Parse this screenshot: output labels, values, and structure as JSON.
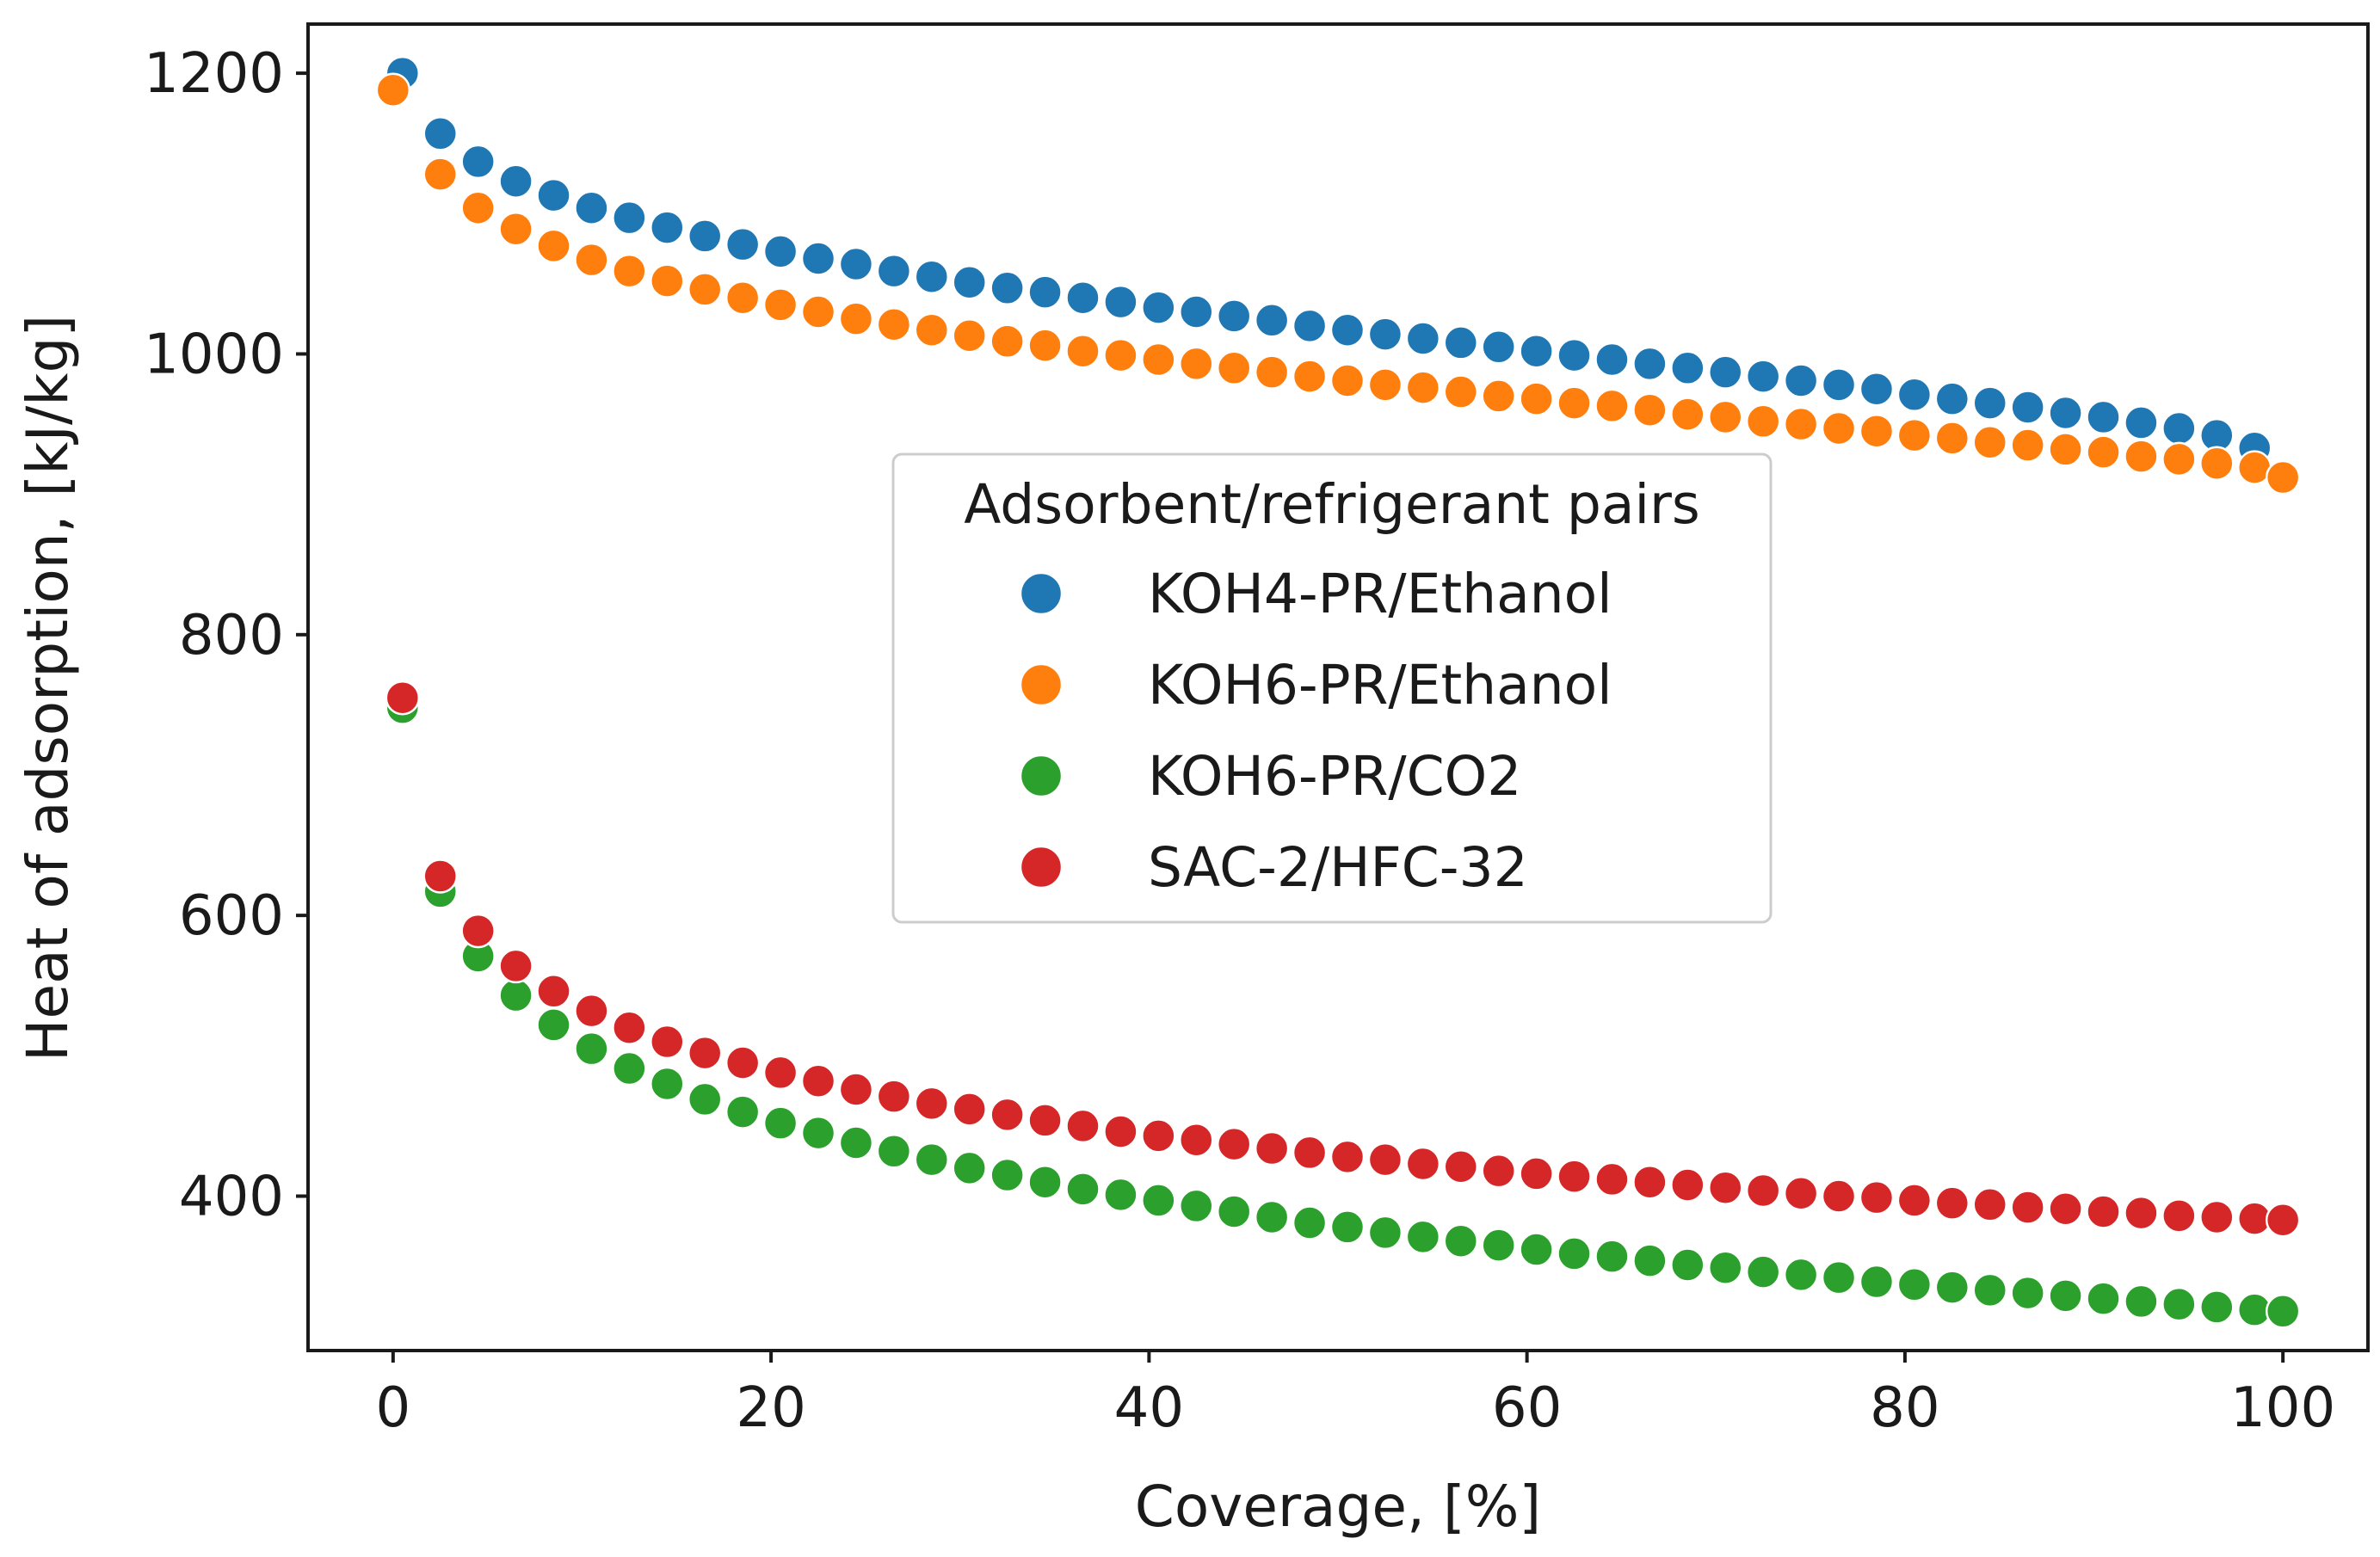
{
  "chart_data": {
    "type": "scatter",
    "title": "",
    "xlabel": "Coverage, [%]",
    "ylabel": "Heat of adsorption, [kJ/kg]",
    "xlim": [
      -4.5,
      104.5
    ],
    "ylim": [
      290,
      1235
    ],
    "xticks": [
      0,
      20,
      40,
      60,
      80,
      100
    ],
    "yticks": [
      400,
      600,
      800,
      1000,
      1200
    ],
    "xtick_labels": [
      "0",
      "20",
      "40",
      "60",
      "80",
      "100"
    ],
    "ytick_labels": [
      "400",
      "600",
      "800",
      "1000",
      "1200"
    ],
    "grid": false,
    "legend": {
      "title": "Adsorbent/refrigerant pairs",
      "location": "center"
    },
    "x": [
      0.5,
      2.5,
      4.5,
      6.5,
      8.5,
      10.5,
      12.5,
      14.5,
      16.5,
      18.5,
      20.5,
      22.5,
      24.5,
      26.5,
      28.5,
      30.5,
      32.5,
      34.5,
      36.5,
      38.5,
      40.5,
      42.5,
      44.5,
      46.5,
      48.5,
      50.5,
      52.5,
      54.5,
      56.5,
      58.5,
      60.5,
      62.5,
      64.5,
      66.5,
      68.5,
      70.5,
      72.5,
      74.5,
      76.5,
      78.5,
      80.5,
      82.5,
      84.5,
      86.5,
      88.5,
      90.5,
      92.5,
      94.5,
      96.5,
      98.5
    ],
    "series": [
      {
        "name": "KOH4-PR/Ethanol",
        "color": "#1f77b4",
        "x": [
          0.5,
          2.5,
          4.5,
          6.5,
          8.5,
          10.5,
          12.5,
          14.5,
          16.5,
          18.5,
          20.5,
          22.5,
          24.5,
          26.5,
          28.5,
          30.5,
          32.5,
          34.5,
          36.5,
          38.5,
          40.5,
          42.5,
          44.5,
          46.5,
          48.5,
          50.5,
          52.5,
          54.5,
          56.5,
          58.5,
          60.5,
          62.5,
          64.5,
          66.5,
          68.5,
          70.5,
          72.5,
          74.5,
          76.5,
          78.5,
          80.5,
          82.5,
          84.5,
          86.5,
          88.5,
          90.5,
          92.5,
          94.5,
          96.5,
          98.5
        ],
        "values": [
          1200,
          1157,
          1137,
          1123,
          1113,
          1104,
          1097,
          1090,
          1084,
          1078,
          1073,
          1068,
          1064,
          1059,
          1055,
          1051,
          1047,
          1044,
          1040,
          1037,
          1033,
          1030,
          1027,
          1024,
          1020,
          1017,
          1014,
          1011,
          1008,
          1005,
          1002,
          999,
          996,
          993,
          990,
          987,
          984,
          981,
          978,
          975,
          971,
          968,
          965,
          962,
          958,
          955,
          951,
          947,
          942,
          933
        ]
      },
      {
        "name": "KOH6-PR/Ethanol",
        "color": "#ff7f0e",
        "x": [
          0,
          2.5,
          4.5,
          6.5,
          8.5,
          10.5,
          12.5,
          14.5,
          16.5,
          18.5,
          20.5,
          22.5,
          24.5,
          26.5,
          28.5,
          30.5,
          32.5,
          34.5,
          36.5,
          38.5,
          40.5,
          42.5,
          44.5,
          46.5,
          48.5,
          50.5,
          52.5,
          54.5,
          56.5,
          58.5,
          60.5,
          62.5,
          64.5,
          66.5,
          68.5,
          70.5,
          72.5,
          74.5,
          76.5,
          78.5,
          80.5,
          82.5,
          84.5,
          86.5,
          88.5,
          90.5,
          92.5,
          94.5,
          96.5,
          98.5,
          100
        ],
        "values": [
          1188,
          1128,
          1104,
          1089,
          1077,
          1067,
          1059,
          1052,
          1046,
          1040,
          1035,
          1030,
          1025,
          1021,
          1017,
          1013,
          1009,
          1006,
          1002,
          999,
          996,
          993,
          990,
          987,
          984,
          981,
          978,
          976,
          973,
          970,
          968,
          965,
          963,
          960,
          957,
          955,
          952,
          950,
          947,
          945,
          942,
          940,
          937,
          935,
          932,
          930,
          927,
          925,
          922,
          919,
          912
        ]
      },
      {
        "name": "KOH6-PR/CO2",
        "color": "#2ca02c",
        "x": [
          0.5,
          2.5,
          4.5,
          6.5,
          8.5,
          10.5,
          12.5,
          14.5,
          16.5,
          18.5,
          20.5,
          22.5,
          24.5,
          26.5,
          28.5,
          30.5,
          32.5,
          34.5,
          36.5,
          38.5,
          40.5,
          42.5,
          44.5,
          46.5,
          48.5,
          50.5,
          52.5,
          54.5,
          56.5,
          58.5,
          60.5,
          62.5,
          64.5,
          66.5,
          68.5,
          70.5,
          72.5,
          74.5,
          76.5,
          78.5,
          80.5,
          82.5,
          84.5,
          86.5,
          88.5,
          90.5,
          92.5,
          94.5,
          96.5,
          98.5,
          100
        ],
        "values": [
          748,
          617,
          571,
          543,
          522,
          505,
          491,
          480,
          469,
          460,
          452,
          445,
          438,
          432,
          426,
          420,
          415,
          410,
          405,
          401,
          397,
          393,
          389,
          385,
          381,
          378,
          374,
          371,
          368,
          365,
          362,
          359,
          357,
          354,
          351,
          349,
          346,
          344,
          342,
          339,
          337,
          335,
          333,
          331,
          329,
          327,
          325,
          323,
          321,
          319,
          318
        ]
      },
      {
        "name": "SAC-2/HFC-32",
        "color": "#d62728",
        "x": [
          0.5,
          2.5,
          4.5,
          6.5,
          8.5,
          10.5,
          12.5,
          14.5,
          16.5,
          18.5,
          20.5,
          22.5,
          24.5,
          26.5,
          28.5,
          30.5,
          32.5,
          34.5,
          36.5,
          38.5,
          40.5,
          42.5,
          44.5,
          46.5,
          48.5,
          50.5,
          52.5,
          54.5,
          56.5,
          58.5,
          60.5,
          62.5,
          64.5,
          66.5,
          68.5,
          70.5,
          72.5,
          74.5,
          76.5,
          78.5,
          80.5,
          82.5,
          84.5,
          86.5,
          88.5,
          90.5,
          92.5,
          94.5,
          96.5,
          98.5,
          100
        ],
        "values": [
          755,
          628,
          589,
          564,
          546,
          532,
          520,
          510,
          502,
          495,
          488,
          482,
          476,
          471,
          466,
          462,
          458,
          454,
          450,
          446,
          443,
          440,
          437,
          434,
          431,
          428,
          426,
          423,
          421,
          418,
          416,
          414,
          412,
          410,
          408,
          406,
          404,
          402,
          400,
          399,
          397,
          395,
          394,
          392,
          391,
          389,
          388,
          386,
          385,
          384,
          383
        ]
      }
    ]
  }
}
